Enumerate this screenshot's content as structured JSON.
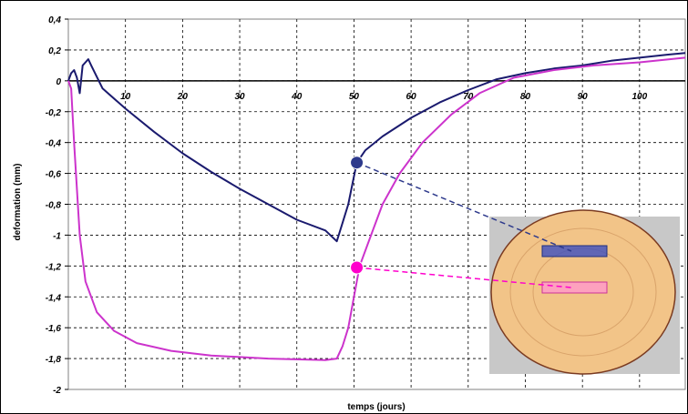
{
  "chart_data": {
    "type": "line",
    "title": "",
    "xlabel": "temps (jours)",
    "ylabel": "deformation (mm)",
    "xlim": [
      0,
      108
    ],
    "ylim": [
      -2,
      0.4
    ],
    "x_ticks": [
      10,
      20,
      30,
      40,
      50,
      60,
      70,
      80,
      90,
      100
    ],
    "x_tick_labels": [
      "10",
      "20",
      "30",
      "40",
      "50",
      "60",
      "70",
      "80",
      "90",
      "100"
    ],
    "y_ticks": [
      0.4,
      0.2,
      0,
      -0.2,
      -0.4,
      -0.6,
      -0.8,
      -1,
      -1.2,
      -1.4,
      -1.6,
      -1.8,
      -2
    ],
    "y_tick_labels": [
      "0,4",
      "0,2",
      "0",
      "-0,2",
      "-0,4",
      "-0,6",
      "-0,8",
      "-1",
      "-1,2",
      "-1,4",
      "-1,6",
      "-1,8",
      "-2"
    ],
    "grid": true,
    "legend": "none",
    "series": [
      {
        "color": "#1a1a6e",
        "points": [
          [
            0,
            0
          ],
          [
            0.5,
            0.05
          ],
          [
            1,
            0.07
          ],
          [
            1.5,
            0.02
          ],
          [
            2,
            -0.08
          ],
          [
            2.5,
            0.1
          ],
          [
            3,
            0.12
          ],
          [
            3.5,
            0.14
          ],
          [
            4,
            0.1
          ],
          [
            6,
            -0.05
          ],
          [
            10,
            -0.18
          ],
          [
            15,
            -0.33
          ],
          [
            20,
            -0.47
          ],
          [
            25,
            -0.59
          ],
          [
            30,
            -0.7
          ],
          [
            35,
            -0.8
          ],
          [
            40,
            -0.9
          ],
          [
            45,
            -0.97
          ],
          [
            47,
            -1.04
          ],
          [
            48,
            -0.92
          ],
          [
            49,
            -0.8
          ],
          [
            50,
            -0.62
          ],
          [
            50.5,
            -0.53
          ],
          [
            52,
            -0.45
          ],
          [
            55,
            -0.36
          ],
          [
            60,
            -0.24
          ],
          [
            65,
            -0.14
          ],
          [
            70,
            -0.06
          ],
          [
            75,
            0.01
          ],
          [
            80,
            0.05
          ],
          [
            85,
            0.08
          ],
          [
            90,
            0.1
          ],
          [
            95,
            0.13
          ],
          [
            100,
            0.15
          ],
          [
            105,
            0.17
          ],
          [
            108,
            0.18
          ]
        ]
      },
      {
        "color": "#cc33cc",
        "points": [
          [
            0,
            0
          ],
          [
            0.5,
            -0.05
          ],
          [
            1,
            -0.4
          ],
          [
            2,
            -1.0
          ],
          [
            3,
            -1.3
          ],
          [
            5,
            -1.5
          ],
          [
            8,
            -1.62
          ],
          [
            12,
            -1.7
          ],
          [
            18,
            -1.75
          ],
          [
            25,
            -1.78
          ],
          [
            35,
            -1.8
          ],
          [
            45,
            -1.81
          ],
          [
            47,
            -1.8
          ],
          [
            48,
            -1.72
          ],
          [
            49,
            -1.6
          ],
          [
            50,
            -1.4
          ],
          [
            51,
            -1.2
          ],
          [
            53,
            -1.0
          ],
          [
            55,
            -0.8
          ],
          [
            58,
            -0.6
          ],
          [
            62,
            -0.4
          ],
          [
            67,
            -0.22
          ],
          [
            72,
            -0.08
          ],
          [
            78,
            0.02
          ],
          [
            85,
            0.07
          ],
          [
            92,
            0.1
          ],
          [
            100,
            0.12
          ],
          [
            108,
            0.15
          ]
        ]
      }
    ],
    "markers": [
      {
        "x": 50.5,
        "y": -0.53,
        "color": "#2e3a8c"
      },
      {
        "x": 50.5,
        "y": -1.21,
        "color": "#ff00cc"
      }
    ],
    "inset": {
      "type": "image",
      "description_icon": "cross-section-disk",
      "fill": "#f2c488",
      "background": "#c8c8c8",
      "blue_rect_color": "#3b4fc0",
      "pink_rect_color": "#ff99cc"
    }
  }
}
